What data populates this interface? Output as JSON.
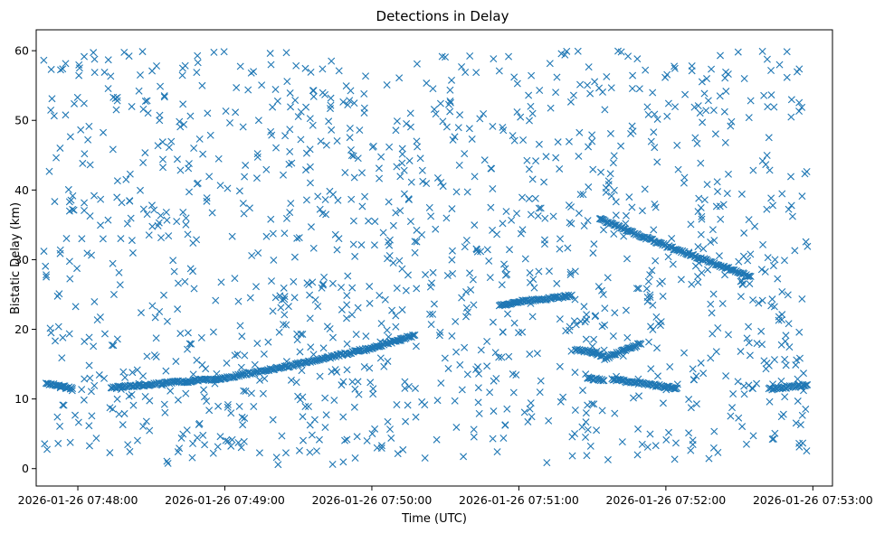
{
  "chart_data": {
    "type": "scatter",
    "title": "Detections in Delay",
    "xlabel": "Time (UTC)",
    "ylabel": "Bistatic Delay (km)",
    "marker": "x",
    "color": "#1f77b4",
    "xlim": [
      "2026-01-26 07:47:43",
      "2026-01-26 07:53:08"
    ],
    "ylim": [
      -2.5,
      63
    ],
    "grid": false,
    "x_ticks": [
      "2026-01-26 07:48:00",
      "2026-01-26 07:49:00",
      "2026-01-26 07:50:00",
      "2026-01-26 07:51:00",
      "2026-01-26 07:52:00",
      "2026-01-26 07:53:00"
    ],
    "y_ticks": [
      0,
      10,
      20,
      30,
      40,
      50,
      60
    ],
    "noise": {
      "description_of_range": "uniformly scattered false detections",
      "x_range": [
        "2026-01-26 07:47:46",
        "2026-01-26 07:52:58"
      ],
      "y_range": [
        0.5,
        60
      ],
      "approx_count": 1300
    },
    "tracks": [
      {
        "x": [
          "2026-01-26 07:47:47",
          "2026-01-26 07:47:58"
        ],
        "y": [
          12.2,
          11.5
        ]
      },
      {
        "x": [
          "2026-01-26 07:48:14",
          "2026-01-26 07:49:00",
          "2026-01-26 07:49:30",
          "2026-01-26 07:50:00",
          "2026-01-26 07:50:18"
        ],
        "y": [
          11.6,
          13.0,
          15.0,
          17.3,
          19.2
        ]
      },
      {
        "x": [
          "2026-01-26 07:50:52",
          "2026-01-26 07:51:00",
          "2026-01-26 07:51:22"
        ],
        "y": [
          23.3,
          24.0,
          24.8
        ]
      },
      {
        "x": [
          "2026-01-26 07:51:23",
          "2026-01-26 07:51:35"
        ],
        "y": [
          17.2,
          16.2
        ]
      },
      {
        "x": [
          "2026-01-26 07:51:35",
          "2026-01-26 07:51:50"
        ],
        "y": [
          15.8,
          18.0
        ]
      },
      {
        "x": [
          "2026-01-26 07:51:28",
          "2026-01-26 07:51:35"
        ],
        "y": [
          13.0,
          12.7
        ]
      },
      {
        "x": [
          "2026-01-26 07:51:38",
          "2026-01-26 07:52:05"
        ],
        "y": [
          12.8,
          11.5
        ]
      },
      {
        "x": [
          "2026-01-26 07:51:33",
          "2026-01-26 07:52:00",
          "2026-01-26 07:52:35"
        ],
        "y": [
          35.8,
          32.0,
          27.5
        ]
      },
      {
        "x": [
          "2026-01-26 07:52:42",
          "2026-01-26 07:52:58"
        ],
        "y": [
          11.4,
          12.0
        ]
      }
    ]
  }
}
